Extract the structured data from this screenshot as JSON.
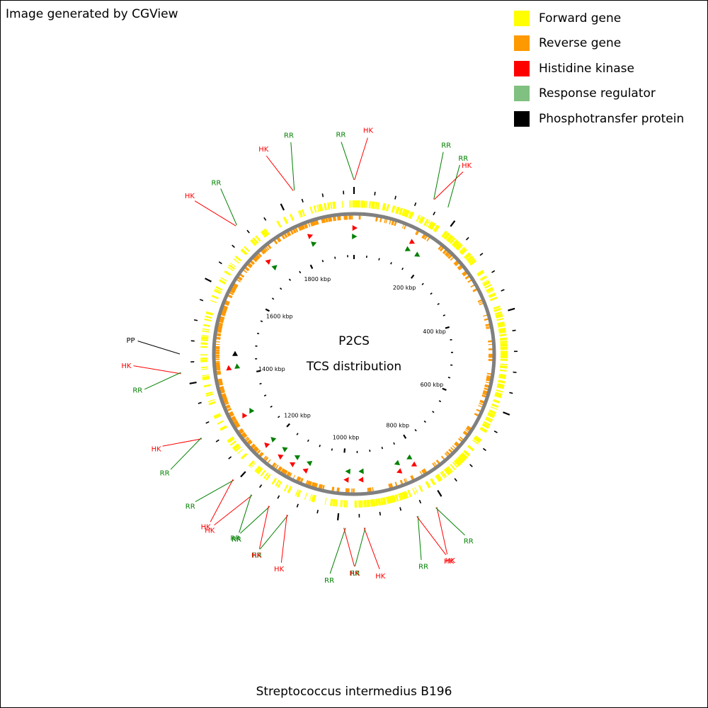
{
  "credit": "Image generated by CGView",
  "title": "P2CS",
  "subtitle": "TCS distribution",
  "organism": "Streptococcus intermedius B196",
  "colors": {
    "forward": "#ffff00",
    "reverse": "#ff9900",
    "hk": "#ff0000",
    "rr": "#008000",
    "rr_legend": "#80c080",
    "pp": "#000000",
    "backbone": "#808080"
  },
  "legend": [
    {
      "label": "Forward gene",
      "color": "#ffff00"
    },
    {
      "label": "Reverse gene",
      "color": "#ff9900"
    },
    {
      "label": "Histidine kinase",
      "color": "#ff0000"
    },
    {
      "label": "Response regulator",
      "color": "#80c080"
    },
    {
      "label": "Phosphotransfer protein",
      "color": "#000000"
    }
  ],
  "genome": {
    "length_kbp": 1940,
    "ticks_kbp": [
      "200 kbp",
      "400 kbp",
      "600 kbp",
      "800 kbp",
      "1000 kbp",
      "1200 kbp",
      "1400 kbp",
      "1600 kbp",
      "1800 kbp"
    ]
  },
  "features": [
    {
      "label": "RR",
      "type": "RR",
      "pos_kbp": 0
    },
    {
      "label": "HK",
      "type": "HK",
      "pos_kbp": 1
    },
    {
      "label": "RR",
      "type": "RR",
      "pos_kbp": 147
    },
    {
      "label": "HK",
      "type": "HK",
      "pos_kbp": 148
    },
    {
      "label": "RR",
      "type": "RR",
      "pos_kbp": 176
    },
    {
      "label": "HK",
      "type": "HK",
      "pos_kbp": 817
    },
    {
      "label": "RR",
      "type": "RR",
      "pos_kbp": 819
    },
    {
      "label": "RR",
      "type": "RR",
      "pos_kbp": 854
    },
    {
      "label": "HK",
      "type": "HK",
      "pos_kbp": 856
    },
    {
      "label": "RR",
      "type": "RR",
      "pos_kbp": 950
    },
    {
      "label": "HK",
      "type": "HK",
      "pos_kbp": 952
    },
    {
      "label": "RR",
      "type": "RR",
      "pos_kbp": 985
    },
    {
      "label": "HK",
      "type": "HK",
      "pos_kbp": 988
    },
    {
      "label": "RR",
      "type": "RR",
      "pos_kbp": 1090
    },
    {
      "label": "HK",
      "type": "HK",
      "pos_kbp": 1092
    },
    {
      "label": "RR",
      "type": "RR",
      "pos_kbp": 1126
    },
    {
      "label": "HK",
      "type": "HK",
      "pos_kbp": 1128
    },
    {
      "label": "HK",
      "type": "HK",
      "pos_kbp": 1163
    },
    {
      "label": "RR",
      "type": "RR",
      "pos_kbp": 1165
    },
    {
      "label": "RR",
      "type": "RR",
      "pos_kbp": 1205
    },
    {
      "label": "HK",
      "type": "HK",
      "pos_kbp": 1207
    },
    {
      "label": "HK",
      "type": "HK",
      "pos_kbp": 1298
    },
    {
      "label": "RR",
      "type": "RR",
      "pos_kbp": 1300
    },
    {
      "label": "HK",
      "type": "HK",
      "pos_kbp": 1420
    },
    {
      "label": "RR",
      "type": "RR",
      "pos_kbp": 1422
    },
    {
      "label": "PP",
      "type": "PP",
      "pos_kbp": 1455
    },
    {
      "label": "HK",
      "type": "HK",
      "pos_kbp": 1710
    },
    {
      "label": "RR",
      "type": "RR",
      "pos_kbp": 1712
    },
    {
      "label": "HK",
      "type": "HK",
      "pos_kbp": 1830
    },
    {
      "label": "RR",
      "type": "RR",
      "pos_kbp": 1832
    }
  ]
}
